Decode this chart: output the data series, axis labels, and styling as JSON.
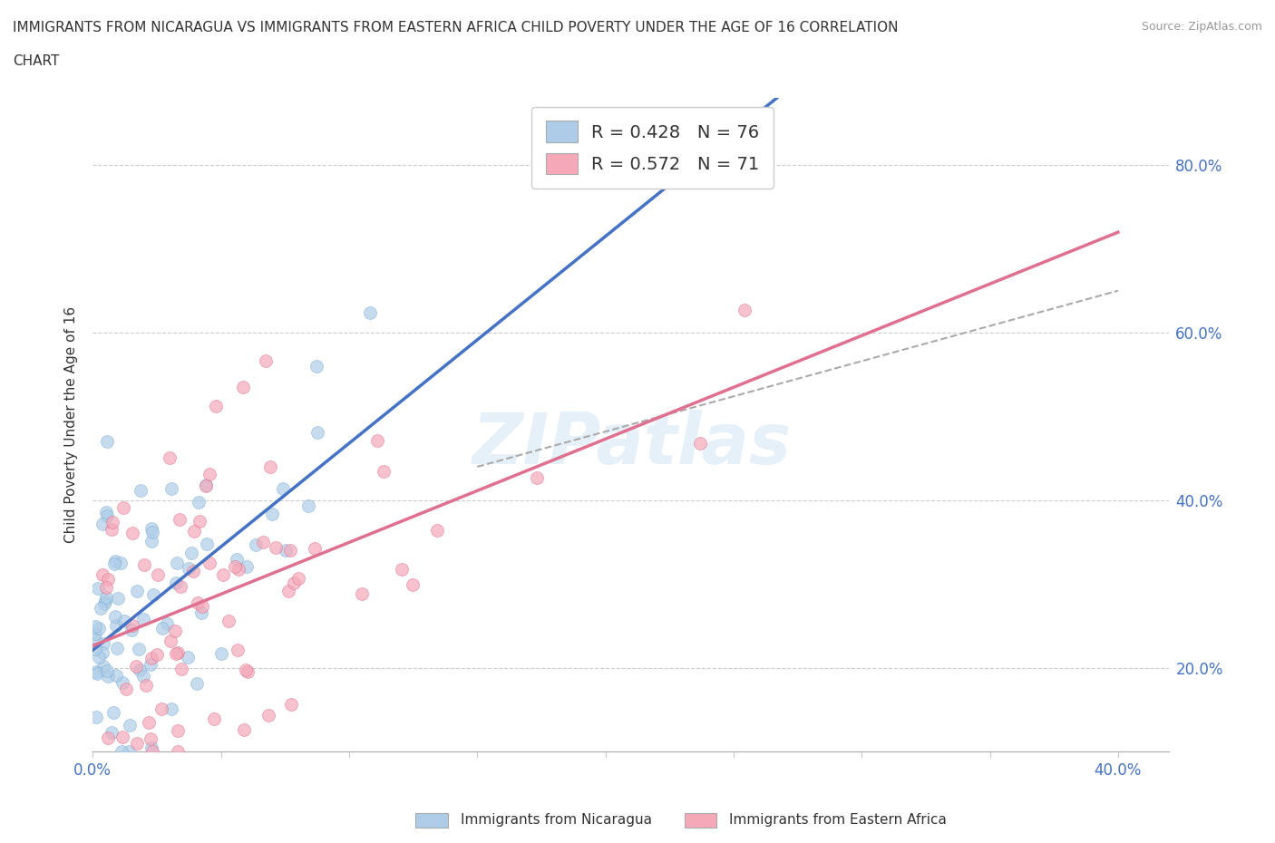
{
  "title_line1": "IMMIGRANTS FROM NICARAGUA VS IMMIGRANTS FROM EASTERN AFRICA CHILD POVERTY UNDER THE AGE OF 16 CORRELATION",
  "title_line2": "CHART",
  "source": "Source: ZipAtlas.com",
  "ylabel": "Child Poverty Under the Age of 16",
  "xlim": [
    0.0,
    0.42
  ],
  "ylim": [
    0.1,
    0.88
  ],
  "x_ticks": [
    0.0,
    0.05,
    0.1,
    0.15,
    0.2,
    0.25,
    0.3,
    0.35,
    0.4
  ],
  "y_ticks": [
    0.2,
    0.4,
    0.6,
    0.8
  ],
  "y_tick_labels": [
    "20.0%",
    "40.0%",
    "60.0%",
    "80.0%"
  ],
  "nicaragua_color": "#aecce8",
  "nicaragua_edge_color": "#7aafd4",
  "eastern_africa_color": "#f4a8b8",
  "eastern_africa_edge_color": "#e07090",
  "nicaragua_line_color": "#4472c4",
  "eastern_africa_line_color": "#e07090",
  "conf_line_color": "#aaaaaa",
  "legend_r1": "R = 0.428",
  "legend_n1": "N = 76",
  "legend_r2": "R = 0.572",
  "legend_n2": "N = 71",
  "watermark": "ZIPatlas",
  "grid_color": "#cccccc",
  "nicaragua_R": 0.428,
  "nicaragua_N": 76,
  "eastern_africa_R": 0.572,
  "eastern_africa_N": 71,
  "bottom_legend_label1": "Immigrants from Nicaragua",
  "bottom_legend_label2": "Immigrants from Eastern Africa"
}
